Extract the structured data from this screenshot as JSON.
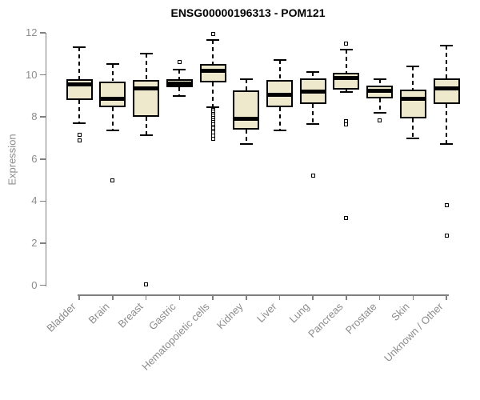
{
  "chart_data": {
    "type": "boxplot",
    "title": "ENSG00000196313 - POM121",
    "ylabel": "Expression",
    "xlabel": "",
    "ylim": [
      0,
      12
    ],
    "yticks": [
      0,
      2,
      4,
      6,
      8,
      10,
      12
    ],
    "grid": false,
    "legend": false,
    "colors": {
      "box_fill": "#EEE8CD",
      "box_border": "#000000",
      "axis": "#808080",
      "tick_label": "#8c8c8c",
      "title": "#000000"
    },
    "categories": [
      "Bladder",
      "Brain",
      "Breast",
      "Gastric",
      "Hematopoietic cells",
      "Kidney",
      "Liver",
      "Lung",
      "Pancreas",
      "Prostate",
      "Skin",
      "Unknown / Other"
    ],
    "boxes": [
      {
        "label": "Bladder",
        "low": 7.7,
        "q1": 8.8,
        "median": 9.55,
        "q3": 9.8,
        "high": 11.3,
        "outliers": [
          7.15,
          6.9
        ]
      },
      {
        "label": "Brain",
        "low": 7.35,
        "q1": 8.45,
        "median": 8.85,
        "q3": 9.7,
        "high": 10.5,
        "outliers": [
          5.0
        ]
      },
      {
        "label": "Breast",
        "low": 7.15,
        "q1": 8.0,
        "median": 9.35,
        "q3": 9.75,
        "high": 11.0,
        "outliers": [
          0.05
        ]
      },
      {
        "label": "Gastric",
        "low": 9.0,
        "q1": 9.4,
        "median": 9.6,
        "q3": 9.8,
        "high": 10.25,
        "outliers": [
          10.6
        ]
      },
      {
        "label": "Hematopoietic cells",
        "low": 8.45,
        "q1": 9.65,
        "median": 10.2,
        "q3": 10.5,
        "high": 11.65,
        "outliers": [
          11.95,
          8.35,
          8.25,
          8.15,
          8.05,
          7.95,
          7.85,
          7.75,
          7.65,
          7.55,
          7.45,
          7.35,
          7.25,
          7.1,
          6.95
        ]
      },
      {
        "label": "Kidney",
        "low": 6.7,
        "q1": 7.4,
        "median": 7.9,
        "q3": 9.25,
        "high": 9.8,
        "outliers": []
      },
      {
        "label": "Liver",
        "low": 7.35,
        "q1": 8.45,
        "median": 9.05,
        "q3": 9.75,
        "high": 10.7,
        "outliers": []
      },
      {
        "label": "Lung",
        "low": 7.65,
        "q1": 8.6,
        "median": 9.2,
        "q3": 9.85,
        "high": 10.15,
        "outliers": [
          5.2
        ]
      },
      {
        "label": "Pancreas",
        "low": 9.2,
        "q1": 9.3,
        "median": 9.85,
        "q3": 10.1,
        "high": 11.2,
        "outliers": [
          11.5,
          7.8,
          7.65,
          3.2
        ]
      },
      {
        "label": "Prostate",
        "low": 8.2,
        "q1": 8.9,
        "median": 9.25,
        "q3": 9.5,
        "high": 9.8,
        "outliers": [
          7.85
        ]
      },
      {
        "label": "Skin",
        "low": 7.0,
        "q1": 7.95,
        "median": 8.85,
        "q3": 9.3,
        "high": 10.4,
        "outliers": []
      },
      {
        "label": "Unknown / Other",
        "low": 6.7,
        "q1": 8.6,
        "median": 9.35,
        "q3": 9.85,
        "high": 11.4,
        "outliers": [
          3.8,
          2.35
        ]
      }
    ]
  }
}
